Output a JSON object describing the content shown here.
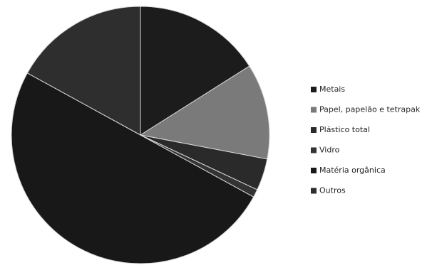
{
  "chart_data": {
    "type": "pie",
    "categories": [
      "Metais",
      "Papel, papelão e tetrapak",
      "Plástico total",
      "Vidro",
      "Matéria orgânica",
      "Outros"
    ],
    "values": [
      16,
      12,
      4,
      1,
      50,
      17
    ],
    "colors": [
      "#1c1c1c",
      "#7a7a7a",
      "#2a2a2a",
      "#333333",
      "#181818",
      "#2e2e2e"
    ],
    "legend": "right"
  }
}
